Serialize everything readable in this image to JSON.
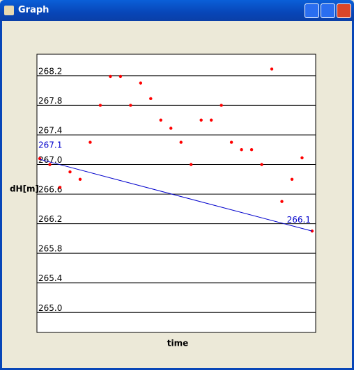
{
  "window": {
    "title": "Graph"
  },
  "chart_data": {
    "type": "scatter",
    "x_label": "time",
    "y_label": "dH[m]",
    "x": [
      0,
      1,
      2,
      3,
      4,
      5,
      6,
      7,
      8,
      9,
      10,
      11,
      12,
      13,
      14,
      15,
      16,
      17,
      18,
      19,
      20,
      21,
      22,
      23,
      24,
      25,
      26,
      27
    ],
    "series": [
      {
        "color": "#ff0000",
        "values": [
          267.08,
          267.0,
          266.69,
          266.9,
          266.8,
          267.3,
          267.8,
          268.19,
          268.19,
          267.8,
          268.1,
          267.89,
          267.6,
          267.49,
          267.3,
          267.0,
          267.6,
          267.6,
          267.8,
          267.3,
          267.2,
          267.2,
          267.0,
          268.29,
          266.5,
          266.8,
          267.09,
          266.1
        ]
      }
    ],
    "trend": {
      "color": "#0000cc",
      "x": [
        0,
        27
      ],
      "values": [
        267.07,
        266.1
      ],
      "value_labels": [
        "267.1",
        "266.1"
      ]
    },
    "xlim": [
      -0.28,
      27.35
    ],
    "ylim": [
      264.73,
      268.49
    ],
    "yticks": [
      {
        "value": 265,
        "label": "265.0"
      },
      265.4,
      265.8,
      266.2,
      266.6,
      {
        "value": 267,
        "label": "267.0"
      },
      267.4,
      267.8,
      268.2
    ],
    "grid": true
  }
}
